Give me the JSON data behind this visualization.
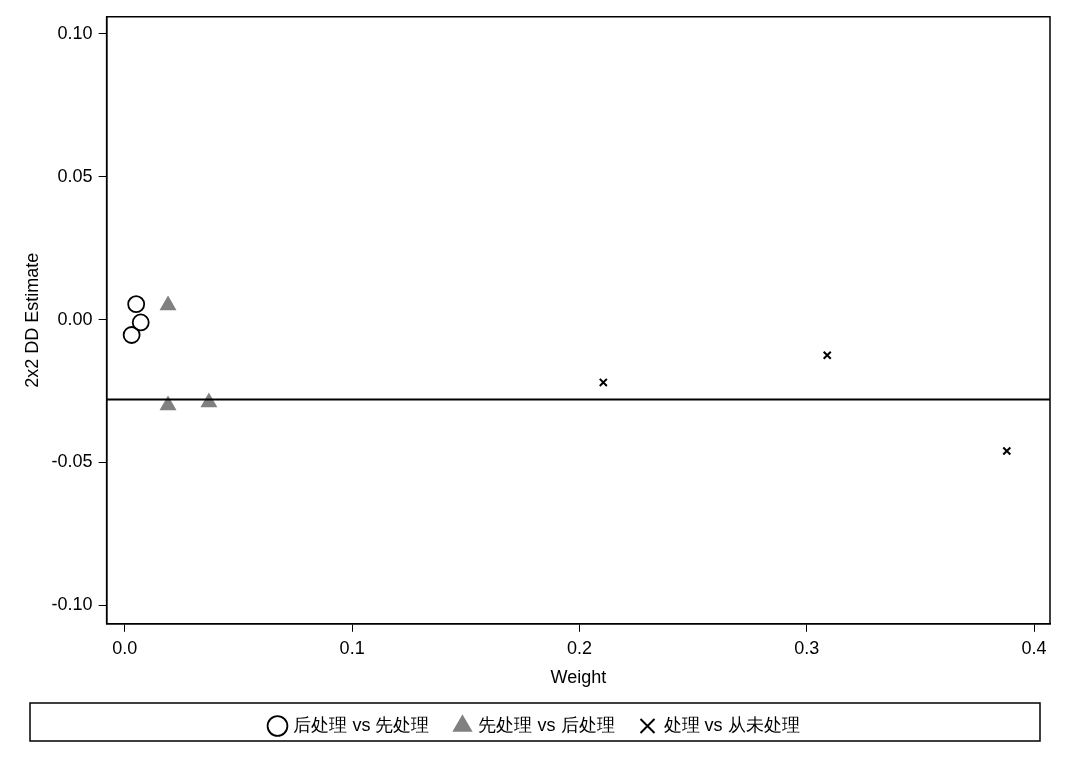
{
  "chart_data": {
    "type": "scatter",
    "xlabel": "Weight",
    "ylabel": "2x2 DD Estimate",
    "xlim": [
      -0.008,
      0.407
    ],
    "ylim": [
      -0.1065,
      0.106
    ],
    "xticks": [
      {
        "value": 0,
        "label": "0.0"
      },
      {
        "value": 0.1,
        "label": "0.1"
      },
      {
        "value": 0.2,
        "label": "0.2"
      },
      {
        "value": 0.3,
        "label": "0.3"
      },
      {
        "value": 0.4,
        "label": "0.4"
      }
    ],
    "yticks": [
      {
        "value": -0.1,
        "label": "-0.10"
      },
      {
        "value": -0.05,
        "label": "-0.05"
      },
      {
        "value": 0,
        "label": "0.00"
      },
      {
        "value": 0.05,
        "label": "0.05"
      },
      {
        "value": 0.1,
        "label": "0.10"
      }
    ],
    "grid": false,
    "legend": "bottom",
    "series": [
      {
        "name": "后处理 vs 先处理",
        "color": "#000000",
        "marker": "circle",
        "x": [
          0.005,
          0.007,
          0.003
        ],
        "values": [
          0.0054,
          -0.001,
          -0.0054
        ]
      },
      {
        "name": "先处理 vs 后处理",
        "color": "#808080",
        "marker": "triangle",
        "x": [
          0.019,
          0.019,
          0.037
        ],
        "values": [
          0.005,
          -0.03,
          -0.029
        ]
      },
      {
        "name": "处理 vs 从未处理",
        "color": "#000000",
        "marker": "cross",
        "x": [
          0.2105,
          0.309,
          0.388
        ],
        "values": [
          -0.022,
          -0.0125,
          -0.046
        ]
      }
    ],
    "ref_lines": [
      {
        "axis": "y",
        "value": -0.028,
        "color": "#000000"
      }
    ]
  }
}
